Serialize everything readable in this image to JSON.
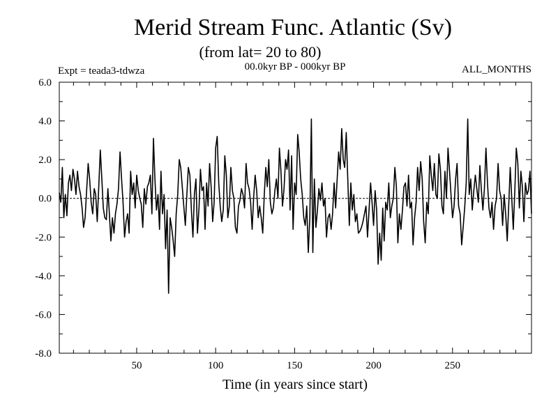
{
  "chart_data": {
    "type": "line",
    "title": "Merid Stream Func. Atlantic (Sv)",
    "subtitle": "(from lat= 20 to 80)",
    "annotation_left": "Expt = teada3-tdwza",
    "annotation_center": "00.0kyr BP - 000kyr BP",
    "annotation_right": "ALL_MONTHS",
    "xlabel": "Time (in years since start)",
    "ylabel": "",
    "xlim": [
      1,
      300
    ],
    "ylim": [
      -8.0,
      6.0
    ],
    "x_ticks": [
      50,
      100,
      150,
      200,
      250
    ],
    "x_tick_labels": [
      "50",
      "100",
      "150",
      "200",
      "250"
    ],
    "y_ticks": [
      -8.0,
      -6.0,
      -4.0,
      -2.0,
      0.0,
      2.0,
      4.0,
      6.0
    ],
    "y_tick_labels": [
      "-8.0",
      "-6.0",
      "-4.0",
      "-2.0",
      "0.0",
      "2.0",
      "4.0",
      "6.0"
    ],
    "zero_line": true,
    "grid": false,
    "series": [
      {
        "values": [
          0.3,
          -0.2,
          1.6,
          -1.0,
          0.2,
          -0.9,
          0.8,
          1.2,
          0.4,
          1.5,
          1.0,
          0.2,
          1.4,
          0.6,
          0.2,
          -0.5,
          -1.5,
          -1.0,
          0.4,
          1.8,
          1.0,
          -0.2,
          -0.8,
          0.5,
          0.2,
          -1.2,
          0.6,
          2.5,
          1.0,
          -0.5,
          -1.0,
          -1.1,
          0.5,
          -0.8,
          -2.2,
          -1.0,
          -1.8,
          -0.8,
          -0.3,
          0.5,
          2.4,
          1.0,
          -0.2,
          -2.0,
          -1.2,
          -0.8,
          -1.8,
          1.4,
          0.2,
          0.8,
          -0.5,
          1.2,
          0.4,
          0.0,
          -0.3,
          -1.5,
          0.5,
          -0.3,
          0.6,
          0.8,
          1.2,
          -0.8,
          3.1,
          1.0,
          -0.6,
          0.2,
          -1.6,
          1.4,
          -0.8,
          0.2,
          -2.6,
          -0.6,
          -4.9,
          -1.0,
          -1.5,
          -2.2,
          -3.0,
          -0.8,
          0.2,
          2.0,
          1.6,
          0.6,
          -0.4,
          -1.4,
          0.2,
          1.6,
          1.2,
          -0.6,
          -2.0,
          0.2,
          1.0,
          -1.8,
          -0.5,
          1.5,
          0.4,
          0.6,
          -1.6,
          0.8,
          -0.4,
          1.8,
          0.6,
          -1.2,
          -0.2,
          2.6,
          3.2,
          0.8,
          -0.4,
          -1.2,
          -0.6,
          2.2,
          1.2,
          -1.0,
          -0.4,
          1.6,
          0.4,
          0.0,
          -1.5,
          -1.8,
          -0.4,
          -0.1,
          0.5,
          0.2,
          -0.5,
          1.8,
          0.8,
          0.5,
          -0.2,
          -1.6,
          0.0,
          1.2,
          0.4,
          -1.0,
          -0.4,
          -1.0,
          -1.8,
          0.2,
          1.6,
          0.6,
          2.0,
          -0.2,
          -0.8,
          -0.5,
          0.4,
          1.0,
          0.0,
          2.6,
          1.4,
          -0.4,
          0.5,
          2.0,
          1.5,
          2.5,
          -0.6,
          2.2,
          -1.6,
          0.8,
          0.2,
          3.3,
          2.4,
          1.0,
          0.2,
          -1.0,
          -1.4,
          -0.4,
          -2.8,
          -1.0,
          4.1,
          -2.8,
          1.0,
          -1.5,
          -0.6,
          0.5,
          -0.1,
          0.8,
          -0.4,
          0.0,
          -2.0,
          -1.0,
          -0.8,
          -1.6,
          -0.8,
          0.8,
          -0.5,
          1.0,
          2.4,
          1.5,
          3.6,
          2.0,
          1.6,
          3.4,
          1.0,
          -1.4,
          0.8,
          -0.6,
          0.2,
          -1.2,
          -0.8,
          -1.8,
          -1.7,
          -1.5,
          -1.2,
          -0.8,
          -0.4,
          -2.0,
          -0.6,
          0.8,
          -0.2,
          -1.4,
          0.4,
          -0.6,
          -3.4,
          -1.8,
          -3.2,
          -0.5,
          -2.2,
          -0.2,
          -0.6,
          0.8,
          -1.0,
          -0.4,
          0.0,
          1.6,
          0.6,
          -2.3,
          -0.8,
          -1.6,
          -0.6,
          0.6,
          0.8,
          -0.4,
          1.2,
          -0.5,
          -0.2,
          -2.4,
          -1.0,
          -0.2,
          1.6,
          0.4,
          1.9,
          1.0,
          -1.2,
          -2.3,
          -0.2,
          -0.8,
          2.2,
          1.2,
          0.4,
          1.8,
          0.2,
          0.0,
          2.3,
          1.5,
          -0.4,
          -0.8,
          1.4,
          0.0,
          2.6,
          1.4,
          0.2,
          -1.0,
          -0.4,
          1.0,
          1.8,
          -0.4,
          -0.8,
          -2.4,
          -1.5,
          -0.5,
          0.8,
          4.1,
          0.2,
          1.0,
          -0.6,
          0.4,
          1.2,
          0.5,
          -0.2,
          1.7,
          0.4,
          -0.6,
          0.5,
          2.6,
          0.8,
          -0.5,
          -1.0,
          -0.2,
          -1.6,
          -0.4,
          0.0,
          1.8,
          0.4,
          0.0,
          -1.4,
          0.2,
          -0.8,
          -2.2,
          -0.4,
          1.6,
          0.0,
          -1.6,
          0.4,
          2.6,
          1.8,
          -0.5,
          1.4,
          0.6,
          -1.2,
          0.8,
          0.2,
          0.4,
          1.4,
          -0.8
        ]
      }
    ]
  }
}
